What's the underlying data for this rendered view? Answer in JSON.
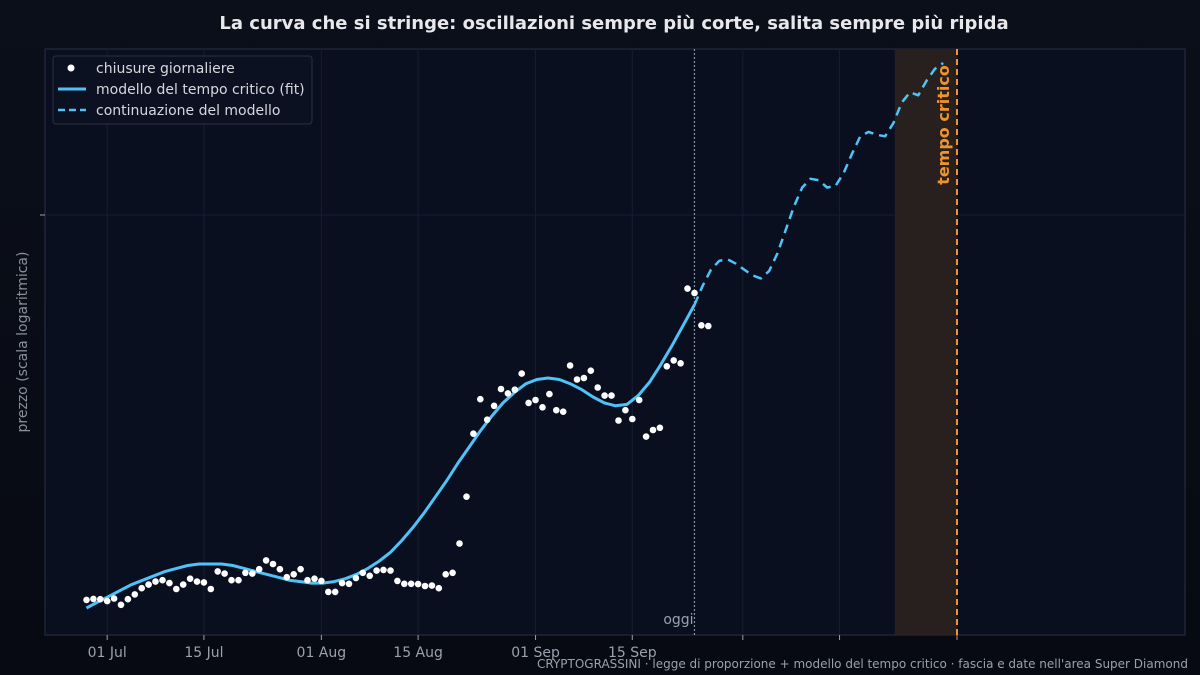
{
  "colors": {
    "background": "#0b1020",
    "panel": "#0a0f20",
    "grid": "#1c2236",
    "fit": "#4fc3f7",
    "points": "#ffffff",
    "critical": "#f0932b",
    "band": "#2a2220"
  },
  "chart_data": {
    "type": "scatter",
    "title": "La curva che si stringe: oscillazioni sempre più corte, salita sempre più ripida",
    "xlabel": "",
    "ylabel": "prezzo (scala logaritmica)",
    "y_scale": "log",
    "x_start": "2024-06-22",
    "x_end": "2024-12-04",
    "x_ticks": [
      {
        "date": "2024-07-01",
        "label": "01 Jul"
      },
      {
        "date": "2024-07-15",
        "label": "15 Jul"
      },
      {
        "date": "2024-08-01",
        "label": "01 Aug"
      },
      {
        "date": "2024-08-15",
        "label": "15 Aug"
      },
      {
        "date": "2024-09-01",
        "label": "01 Sep"
      },
      {
        "date": "2024-09-15",
        "label": "15 Sep"
      },
      {
        "date": "2024-10-01",
        "label": ""
      },
      {
        "date": "2024-10-15",
        "label": ""
      },
      {
        "date": "2024-11-01",
        "label": ""
      }
    ],
    "grid": true,
    "legend_position": "top-left",
    "legend": {
      "points": "chiusure giornaliere",
      "fit": "modello del tempo critico (fit)",
      "continuation": "continuazione del modello"
    },
    "today": {
      "date": "2024-09-24",
      "label": "oggi"
    },
    "critical_time": {
      "date": "2024-11-01",
      "label": "tempo critico"
    },
    "band": {
      "start": "2024-10-23",
      "end": "2024-11-01"
    },
    "closes": {
      "start_date": "2024-06-28",
      "values": [
        0.055,
        0.062,
        0.06,
        0.047,
        0.065,
        0.022,
        0.06,
        0.093,
        0.135,
        0.16,
        0.18,
        0.19,
        0.17,
        0.13,
        0.16,
        0.2,
        0.18,
        0.175,
        0.13,
        0.25,
        0.235,
        0.19,
        0.19,
        0.24,
        0.235,
        0.265,
        0.325,
        0.3,
        0.265,
        0.21,
        0.23,
        0.265,
        0.19,
        0.2,
        0.185,
        0.11,
        0.11,
        0.17,
        0.165,
        0.205,
        0.24,
        0.22,
        0.255,
        0.26,
        0.255,
        0.185,
        0.165,
        0.165,
        0.163,
        0.15,
        0.153,
        0.135,
        0.23,
        0.24,
        0.44,
        0.76,
        1.19,
        1.425,
        1.285,
        1.38,
        1.495,
        1.465,
        1.49,
        1.6,
        1.4,
        1.42,
        1.37,
        1.46,
        1.35,
        1.34,
        1.655,
        1.56,
        1.57,
        1.62,
        1.505,
        1.45,
        1.45,
        1.28,
        1.35,
        1.29,
        1.42,
        1.17,
        1.215,
        1.23,
        1.65,
        1.69,
        1.67,
        2.18,
        2.15,
        1.93,
        1.925
      ]
    },
    "fit": {
      "start_date": "2024-06-28",
      "end_date": "2024-09-24",
      "values": [
        0.0,
        0.04,
        0.08,
        0.12,
        0.16,
        0.19,
        0.22,
        0.25,
        0.27,
        0.29,
        0.3,
        0.3,
        0.3,
        0.29,
        0.27,
        0.25,
        0.23,
        0.21,
        0.19,
        0.18,
        0.17,
        0.17,
        0.18,
        0.2,
        0.23,
        0.27,
        0.32,
        0.38,
        0.46,
        0.55,
        0.65,
        0.76,
        0.87,
        0.99,
        1.1,
        1.21,
        1.31,
        1.4,
        1.47,
        1.53,
        1.56,
        1.57,
        1.56,
        1.53,
        1.49,
        1.44,
        1.4,
        1.38,
        1.39,
        1.45,
        1.54,
        1.66,
        1.79,
        1.93,
        2.07
      ]
    },
    "continuation": {
      "start_date": "2024-09-24",
      "end_date": "2024-10-30",
      "values": [
        2.07,
        2.2,
        2.31,
        2.37,
        2.38,
        2.35,
        2.31,
        2.27,
        2.25,
        2.3,
        2.42,
        2.58,
        2.74,
        2.87,
        2.93,
        2.92,
        2.87,
        2.88,
        2.97,
        3.1,
        3.22,
        3.25,
        3.23,
        3.22,
        3.31,
        3.45,
        3.52,
        3.5,
        3.6,
        3.68,
        3.72
      ]
    }
  },
  "footer": "CRYPTOGRASSINI · legge di proporzione + modello del tempo critico · fascia e date nell'area Super Diamond"
}
